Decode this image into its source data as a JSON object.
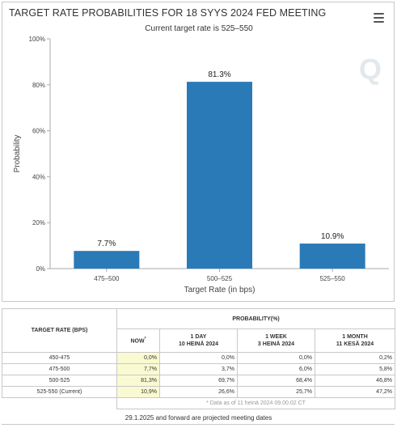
{
  "header": {
    "title": "TARGET RATE PROBABILITIES FOR 18 SYYS 2024 FED MEETING",
    "subtitle": "Current target rate is 525–550",
    "menu_icon": "hamburger-menu-icon",
    "watermark_icon": "q-logo-icon",
    "watermark_text": "Q"
  },
  "chart_data": {
    "type": "bar",
    "title": "TARGET RATE PROBABILITIES FOR 18 SYYS 2024 FED MEETING",
    "subtitle": "Current target rate is 525–550",
    "categories": [
      "475–500",
      "500–525",
      "525–550"
    ],
    "values": [
      7.7,
      81.3,
      10.9
    ],
    "data_labels": [
      "7.7%",
      "81.3%",
      "10.9%"
    ],
    "xlabel": "Target Rate (in bps)",
    "ylabel": "Probability",
    "ylim": [
      0,
      100
    ],
    "yticks": [
      0,
      20,
      40,
      60,
      80,
      100
    ],
    "ytick_labels": [
      "0%",
      "20%",
      "40%",
      "60%",
      "80%",
      "100%"
    ],
    "bar_color": "#2b7ab8",
    "grid": false,
    "legend": "none"
  },
  "table": {
    "target_header": "TARGET RATE (BPS)",
    "prob_header": "PROBABILITY(%)",
    "columns": [
      {
        "line1": "NOW",
        "sup": "*",
        "line2": ""
      },
      {
        "line1": "1 DAY",
        "line2": "10 HEINÄ 2024"
      },
      {
        "line1": "1 WEEK",
        "line2": "3 HEINÄ 2024"
      },
      {
        "line1": "1 MONTH",
        "line2": "11 KESÄ 2024"
      }
    ],
    "rows": [
      {
        "target": "450-475",
        "values": [
          "0,0%",
          "0,0%",
          "0,0%",
          "0,2%"
        ]
      },
      {
        "target": "475-500",
        "values": [
          "7,7%",
          "3,7%",
          "6,0%",
          "5,8%"
        ]
      },
      {
        "target": "500-525",
        "values": [
          "81,3%",
          "69,7%",
          "68,4%",
          "46,8%"
        ]
      },
      {
        "target": "525-550 (Current)",
        "values": [
          "10,9%",
          "26,6%",
          "25,7%",
          "47,2%"
        ]
      }
    ],
    "note": "* Data as of 11 heinä 2024 09.00.02 CT",
    "now_highlight": "#fafad2"
  },
  "footer": "29.1.2025 and forward are projected meeting dates"
}
